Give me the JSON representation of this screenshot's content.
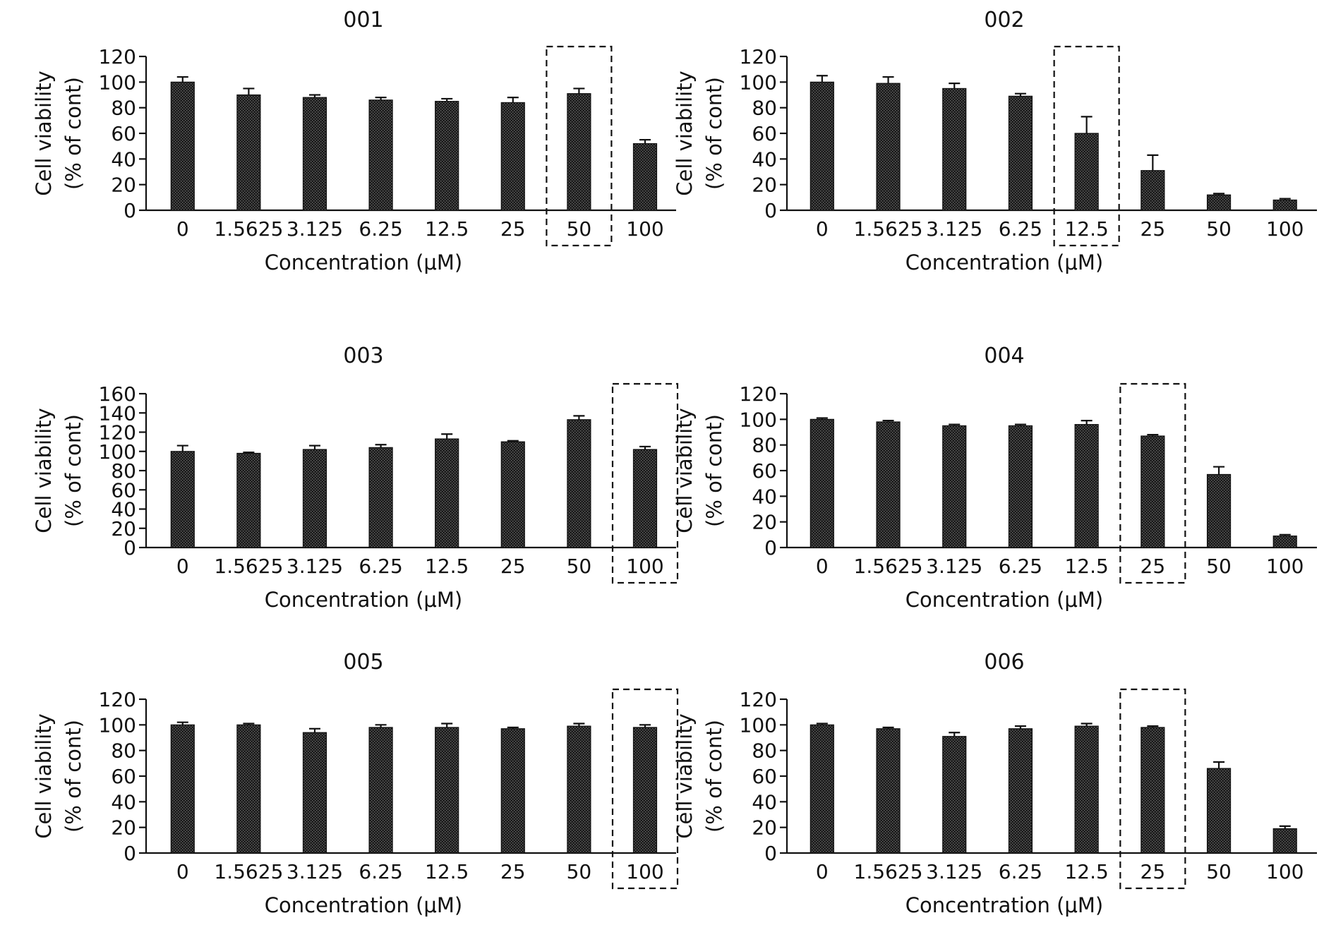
{
  "chart_data": [
    {
      "type": "bar",
      "title": "001",
      "xlabel": "Concentration (μM)",
      "ylabel": [
        "Cell viability",
        "(% of cont)"
      ],
      "categories": [
        "0",
        "1.5625",
        "3.125",
        "6.25",
        "12.5",
        "25",
        "50",
        "100"
      ],
      "values": [
        100,
        90,
        88,
        86,
        85,
        84,
        91,
        52
      ],
      "errors": [
        4,
        5,
        2,
        2,
        2,
        4,
        4,
        3
      ],
      "ylim": [
        0,
        120
      ],
      "yticks": [
        "0",
        "20",
        "40",
        "60",
        "80",
        "100",
        "120"
      ],
      "highlight_category": "50",
      "bar_color": "#222222"
    },
    {
      "type": "bar",
      "title": "002",
      "xlabel": "Concentration (μM)",
      "ylabel": [
        "Cell viability",
        "(% of cont)"
      ],
      "categories": [
        "0",
        "1.5625",
        "3.125",
        "6.25",
        "12.5",
        "25",
        "50",
        "100"
      ],
      "values": [
        100,
        99,
        95,
        89,
        60,
        31,
        12,
        8
      ],
      "errors": [
        5,
        5,
        4,
        2,
        13,
        12,
        1,
        1
      ],
      "ylim": [
        0,
        120
      ],
      "yticks": [
        "0",
        "20",
        "40",
        "60",
        "80",
        "100",
        "120"
      ],
      "highlight_category": "12.5",
      "bar_color": "#222222"
    },
    {
      "type": "bar",
      "title": "003",
      "xlabel": "Concentration (μM)",
      "ylabel": [
        "Cell viability",
        "(% of cont)"
      ],
      "categories": [
        "0",
        "1.5625",
        "3.125",
        "6.25",
        "12.5",
        "25",
        "50",
        "100"
      ],
      "values": [
        100,
        98,
        102,
        104,
        113,
        110,
        133,
        102
      ],
      "errors": [
        6,
        1,
        4,
        3,
        5,
        1,
        4,
        3
      ],
      "ylim": [
        0,
        160
      ],
      "yticks": [
        "0",
        "20",
        "40",
        "60",
        "80",
        "100",
        "120",
        "140",
        "160"
      ],
      "highlight_category": "100",
      "bar_color": "#222222"
    },
    {
      "type": "bar",
      "title": "004",
      "xlabel": "Concentration (μM)",
      "ylabel": [
        "Cell viability",
        "(% of cont)"
      ],
      "categories": [
        "0",
        "1.5625",
        "3.125",
        "6.25",
        "12.5",
        "25",
        "50",
        "100"
      ],
      "values": [
        100,
        98,
        95,
        95,
        96,
        87,
        57,
        9
      ],
      "errors": [
        1,
        1,
        1,
        1,
        3,
        1,
        6,
        1
      ],
      "ylim": [
        0,
        120
      ],
      "yticks": [
        "0",
        "20",
        "40",
        "60",
        "80",
        "100",
        "120"
      ],
      "highlight_category": "25",
      "bar_color": "#222222"
    },
    {
      "type": "bar",
      "title": "005",
      "xlabel": "Concentration (μM)",
      "ylabel": [
        "Cell viability",
        "(% of cont)"
      ],
      "categories": [
        "0",
        "1.5625",
        "3.125",
        "6.25",
        "12.5",
        "25",
        "50",
        "100"
      ],
      "values": [
        100,
        100,
        94,
        98,
        98,
        97,
        99,
        98
      ],
      "errors": [
        2,
        1,
        3,
        2,
        3,
        1,
        2,
        2
      ],
      "ylim": [
        0,
        120
      ],
      "yticks": [
        "0",
        "20",
        "40",
        "60",
        "80",
        "100",
        "120"
      ],
      "highlight_category": "100",
      "bar_color": "#222222"
    },
    {
      "type": "bar",
      "title": "006",
      "xlabel": "Concentration (μM)",
      "ylabel": [
        "Cell viability",
        "(% of cont)"
      ],
      "categories": [
        "0",
        "1.5625",
        "3.125",
        "6.25",
        "12.5",
        "25",
        "50",
        "100"
      ],
      "values": [
        100,
        97,
        91,
        97,
        99,
        98,
        66,
        19
      ],
      "errors": [
        1,
        1,
        3,
        2,
        2,
        1,
        5,
        2
      ],
      "ylim": [
        0,
        120
      ],
      "yticks": [
        "0",
        "20",
        "40",
        "60",
        "80",
        "100",
        "120"
      ],
      "highlight_category": "25",
      "bar_color": "#222222"
    }
  ]
}
